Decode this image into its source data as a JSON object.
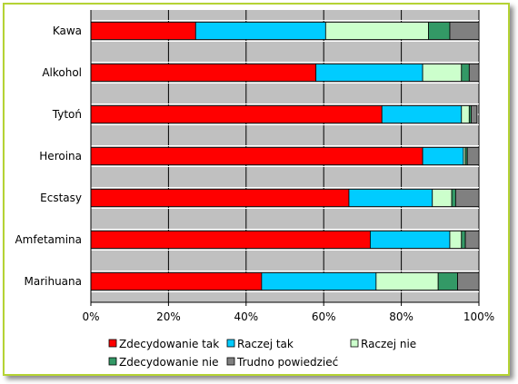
{
  "chart_data": {
    "type": "bar",
    "orientation": "horizontal",
    "stacked": "percent",
    "categories": [
      "Kawa",
      "Alkohol",
      "Tytoń",
      "Heroina",
      "Ecstasy",
      "Amfetamina",
      "Marihuana"
    ],
    "series": [
      {
        "name": "Zdecydowanie tak",
        "color": "#ff0000",
        "values": [
          27,
          58,
          75,
          85.5,
          66.5,
          72,
          44
        ]
      },
      {
        "name": "Raczej tak",
        "color": "#00ccff",
        "values": [
          33.5,
          27.5,
          20.5,
          10.5,
          21.5,
          20.5,
          29.5
        ]
      },
      {
        "name": "Raczej nie",
        "color": "#ccffcc",
        "values": [
          26.5,
          10,
          2,
          0.5,
          5,
          3,
          16
        ]
      },
      {
        "name": "Zdecydowanie nie",
        "color": "#339966",
        "values": [
          5.5,
          2,
          0.5,
          0.5,
          1,
          1,
          5
        ]
      },
      {
        "name": "Trudno powiedzieć",
        "color": "#808080",
        "values": [
          7.5,
          2.5,
          1.5,
          3,
          6,
          3.5,
          5.5
        ]
      }
    ],
    "xlim": [
      0,
      100
    ],
    "x_ticks": [
      "0%",
      "20%",
      "40%",
      "60%",
      "80%",
      "100%"
    ],
    "plot_background": "#c0c0c0",
    "grid": true,
    "legend_position": "bottom"
  }
}
